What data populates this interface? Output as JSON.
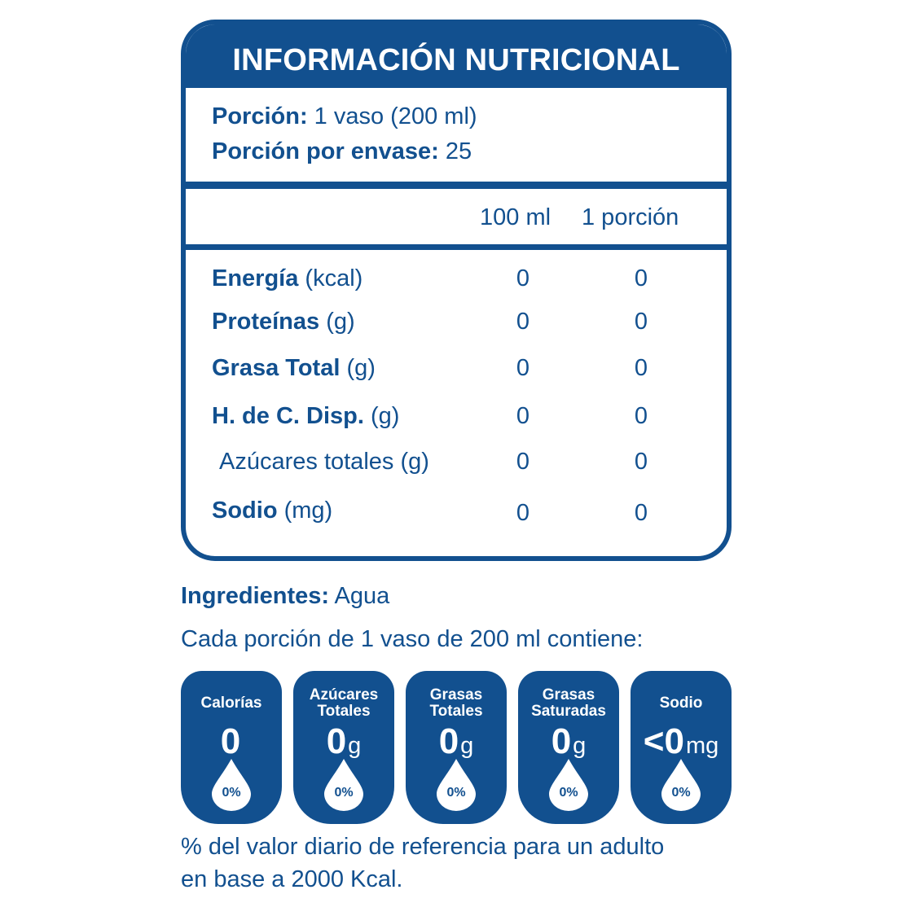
{
  "panel": {
    "title": "INFORMACIÓN NUTRICIONAL",
    "portion_label": "Porción:",
    "portion_value": " 1 vaso (200 ml)",
    "per_pack_label": "Porción por envase:",
    "per_pack_value": " 25",
    "col1_header": "100 ml",
    "col2_header": "1 porción",
    "rows": [
      {
        "bold": "Energía",
        "unit": " (kcal)",
        "v100": "0",
        "vportion": "0"
      },
      {
        "bold": "Proteínas",
        "unit": " (g)",
        "v100": "0",
        "vportion": "0"
      },
      {
        "bold": "Grasa Total",
        "unit": " (g)",
        "v100": "0",
        "vportion": "0"
      },
      {
        "bold": "H. de C. Disp.",
        "unit": " (g)",
        "v100": "0",
        "vportion": "0"
      },
      {
        "bold": "",
        "unit": "Azúcares totales (g)",
        "v100": "0",
        "vportion": "0"
      },
      {
        "bold": "Sodio",
        "unit": " (mg)",
        "v100": "0",
        "vportion": "0"
      }
    ]
  },
  "ingredients": {
    "label": "Ingredientes:",
    "value": " Agua"
  },
  "per_portion_text": "Cada porción de 1 vaso de 200 ml contiene:",
  "badges": [
    {
      "title_1": "Calorías",
      "title_2": "",
      "value": "0",
      "unit": "",
      "pct": "0%"
    },
    {
      "title_1": "Azúcares",
      "title_2": "Totales",
      "value": "0",
      "unit": "g",
      "pct": "0%"
    },
    {
      "title_1": "Grasas",
      "title_2": "Totales",
      "value": "0",
      "unit": "g",
      "pct": "0%"
    },
    {
      "title_1": "Grasas",
      "title_2": "Saturadas",
      "value": "0",
      "unit": "g",
      "pct": "0%"
    },
    {
      "title_1": "Sodio",
      "title_2": "",
      "value": "<0",
      "unit": "mg",
      "pct": "0%"
    }
  ],
  "footnote_1": "% del valor diario de referencia para un adulto",
  "footnote_2": "en base a 2000 Kcal.",
  "colors": {
    "brand_blue": "#12508f",
    "background": "#ffffff"
  },
  "icons": [
    "water-drop-icon"
  ]
}
